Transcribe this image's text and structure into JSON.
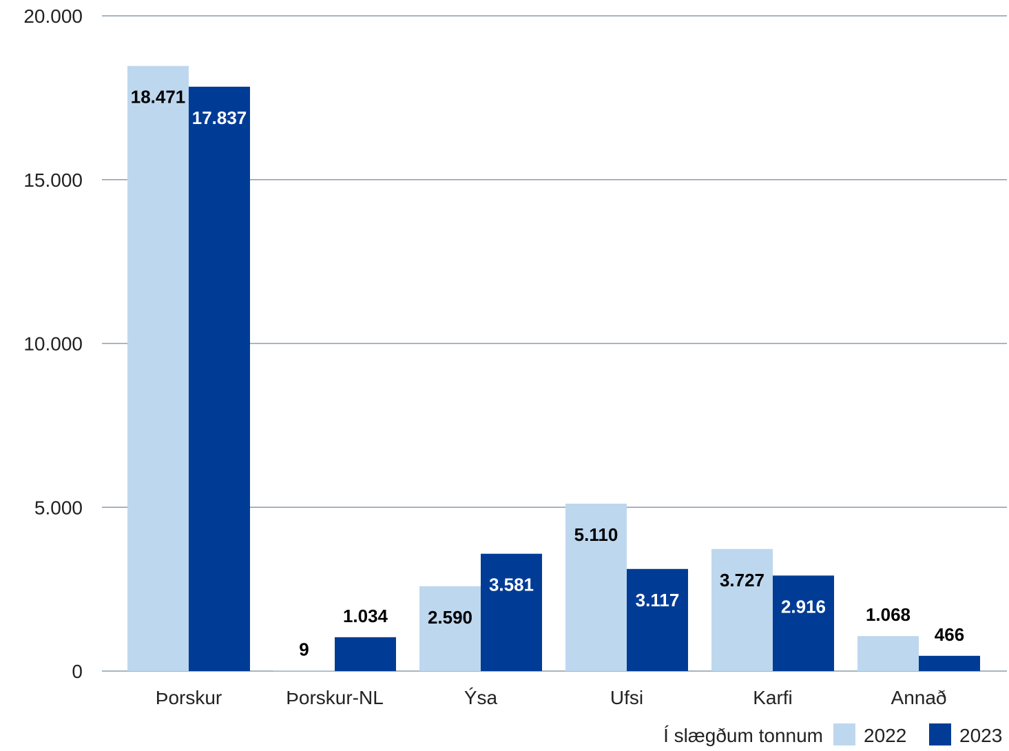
{
  "chart_data": {
    "type": "bar",
    "title": "",
    "xlabel": "",
    "ylabel": "",
    "ylim": [
      0,
      20000
    ],
    "y_ticks": [
      {
        "value": 0,
        "label": "0"
      },
      {
        "value": 5000,
        "label": "5.000"
      },
      {
        "value": 10000,
        "label": "10.000"
      },
      {
        "value": 15000,
        "label": "15.000"
      },
      {
        "value": 20000,
        "label": "20.000"
      }
    ],
    "categories": [
      "Þorskur",
      "Þorskur-NL",
      "Ýsa",
      "Ufsi",
      "Karfi",
      "Annað"
    ],
    "series": [
      {
        "name": "2022",
        "color": "#bdd7ee",
        "label_color": "#000000",
        "values": [
          18471,
          9,
          2590,
          5110,
          3727,
          1068
        ],
        "labels": [
          "18.471",
          "9",
          "2.590",
          "5.110",
          "3.727",
          "1.068"
        ]
      },
      {
        "name": "2023",
        "color": "#003c96",
        "label_color": "#ffffff",
        "values": [
          17837,
          1034,
          3581,
          3117,
          2916,
          466
        ],
        "labels": [
          "17.837",
          "1.034",
          "3.581",
          "3.117",
          "2.916",
          "466"
        ]
      }
    ],
    "grid": true,
    "gridline_color": "#8a9bab",
    "legend": {
      "position": "bottom-right",
      "caption": "Í slægðum tonnum"
    }
  }
}
